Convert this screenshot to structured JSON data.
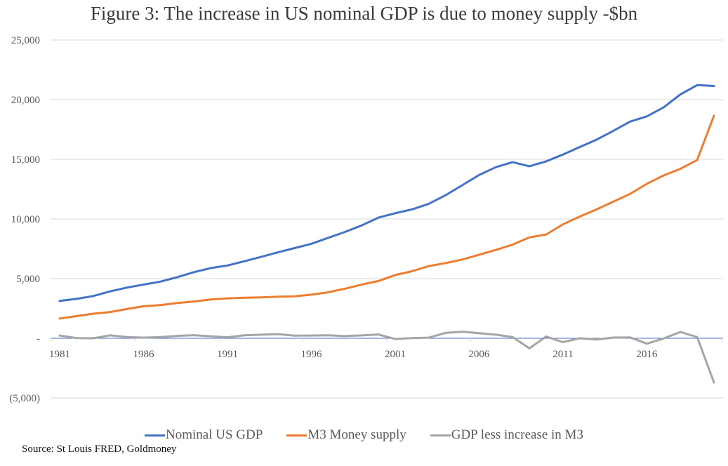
{
  "chart_data": {
    "type": "line",
    "title": "Figure 3: The increase in US nominal GDP is due to money supply -$bn",
    "xlabel": "",
    "ylabel": "",
    "ylim": [
      -5000,
      25000
    ],
    "yticks": [
      25000,
      20000,
      15000,
      10000,
      5000,
      0,
      -5000
    ],
    "ytick_labels": [
      "25,000",
      "20,000",
      "15,000",
      "10,000",
      "5,000",
      "-",
      "(5,000)"
    ],
    "x": [
      1981,
      1982,
      1983,
      1984,
      1985,
      1986,
      1987,
      1988,
      1989,
      1990,
      1991,
      1992,
      1993,
      1994,
      1995,
      1996,
      1997,
      1998,
      1999,
      2000,
      2001,
      2002,
      2003,
      2004,
      2005,
      2006,
      2007,
      2008,
      2009,
      2010,
      2011,
      2012,
      2013,
      2014,
      2015,
      2016,
      2017,
      2018,
      2019,
      2020
    ],
    "xticks": [
      1981,
      1986,
      1991,
      1996,
      2001,
      2006,
      2011,
      2016
    ],
    "xtick_labels": [
      "1981",
      "1986",
      "1991",
      "1996",
      "2001",
      "2006",
      "2011",
      "2016"
    ],
    "grid": true,
    "legend_position": "bottom",
    "series": [
      {
        "name": "Nominal US GDP",
        "color": "#4472c4",
        "values": [
          3130,
          3300,
          3540,
          3930,
          4250,
          4500,
          4750,
          5120,
          5540,
          5880,
          6100,
          6450,
          6820,
          7200,
          7560,
          7920,
          8420,
          8910,
          9460,
          10110,
          10480,
          10800,
          11270,
          11990,
          12830,
          13680,
          14340,
          14760,
          14420,
          14830,
          15400,
          16030,
          16640,
          17390,
          18160,
          18600,
          19360,
          20440,
          21220,
          21150
        ]
      },
      {
        "name": "M3 Money supply",
        "color": "#ed7d31",
        "values": [
          1650,
          1850,
          2060,
          2200,
          2450,
          2680,
          2780,
          2950,
          3080,
          3250,
          3350,
          3400,
          3430,
          3480,
          3520,
          3650,
          3850,
          4150,
          4500,
          4800,
          5300,
          5620,
          6050,
          6300,
          6600,
          7000,
          7400,
          7850,
          8450,
          8700,
          9550,
          10200,
          10800,
          11450,
          12100,
          12950,
          13650,
          14200,
          14950,
          18650
        ]
      },
      {
        "name": "GDP less increase in M3",
        "color": "#a5a5a5",
        "values": [
          230,
          20,
          0,
          250,
          100,
          50,
          100,
          200,
          260,
          170,
          80,
          250,
          300,
          350,
          220,
          230,
          250,
          180,
          240,
          320,
          -60,
          20,
          50,
          450,
          550,
          430,
          300,
          100,
          -850,
          150,
          -330,
          0,
          -100,
          60,
          70,
          -450,
          -20,
          530,
          100,
          -3700
        ]
      }
    ],
    "source": "Source: St Louis FRED, Goldmoney"
  }
}
